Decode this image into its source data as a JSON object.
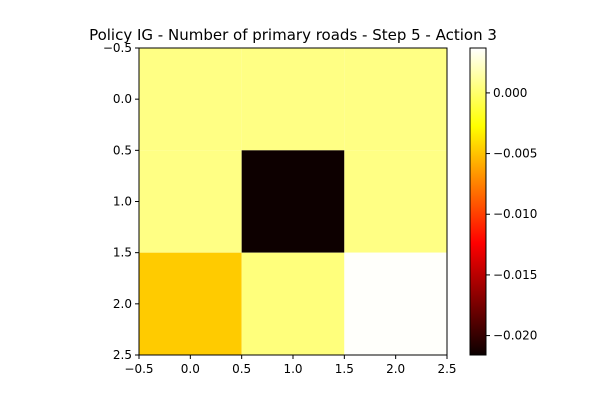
{
  "chart_data": {
    "type": "heatmap",
    "title": "Policy IG - Number of primary roads - Step 5 - Action 3",
    "xlabel": "",
    "ylabel": "",
    "colormap": "hot",
    "rows": 3,
    "cols": 3,
    "values": [
      [
        0.0006,
        0.0006,
        0.0006
      ],
      [
        0.0006,
        -0.0215,
        0.0006
      ],
      [
        -0.0047,
        0.0004,
        0.0036
      ]
    ],
    "xlim": [
      -0.5,
      2.5
    ],
    "ylim": [
      2.5,
      -0.5
    ],
    "x_ticks": [
      -0.5,
      0.0,
      0.5,
      1.0,
      1.5,
      2.0,
      2.5
    ],
    "x_tick_labels": [
      "−0.5",
      "0.0",
      "0.5",
      "1.0",
      "1.5",
      "2.0",
      "2.5"
    ],
    "y_ticks": [
      -0.5,
      0.0,
      0.5,
      1.0,
      1.5,
      2.0,
      2.5
    ],
    "y_tick_labels": [
      "−0.5",
      "0.0",
      "0.5",
      "1.0",
      "1.5",
      "2.0",
      "2.5"
    ],
    "colorbar": {
      "vmin": -0.0216,
      "vmax": 0.0037,
      "ticks": [
        0.0,
        -0.005,
        -0.01,
        -0.015,
        -0.02
      ],
      "tick_labels": [
        "0.000",
        "−0.005",
        "−0.010",
        "−0.015",
        "−0.020"
      ]
    },
    "grid": false
  }
}
